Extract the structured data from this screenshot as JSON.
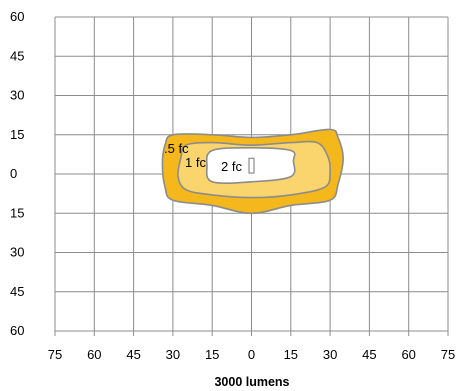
{
  "chart_data": {
    "type": "contour",
    "xlabel": "3000 lumens",
    "ylabel": "",
    "x_ticks": [
      "75",
      "60",
      "45",
      "30",
      "15",
      "0",
      "15",
      "30",
      "45",
      "60",
      "75"
    ],
    "y_ticks": [
      "60",
      "45",
      "30",
      "15",
      "0",
      "15",
      "30",
      "45",
      "60"
    ],
    "xlim": [
      -75,
      75
    ],
    "ylim": [
      -60,
      60
    ],
    "grid": true,
    "contours": [
      {
        "label": ".5 fc",
        "color": "#f5b81c",
        "points": [
          [
            -30,
            15
          ],
          [
            -15,
            15
          ],
          [
            0,
            14
          ],
          [
            15,
            15
          ],
          [
            30,
            17
          ],
          [
            33,
            14
          ],
          [
            35,
            6
          ],
          [
            33,
            -4
          ],
          [
            30,
            -10
          ],
          [
            15,
            -12
          ],
          [
            0,
            -15
          ],
          [
            -15,
            -12
          ],
          [
            -30,
            -10
          ],
          [
            -33,
            -5
          ],
          [
            -34,
            4
          ],
          [
            -33,
            11
          ]
        ]
      },
      {
        "label": "1 fc",
        "color": "#fad56e",
        "points": [
          [
            -25,
            11
          ],
          [
            -15,
            12
          ],
          [
            0,
            11
          ],
          [
            15,
            12
          ],
          [
            25,
            12
          ],
          [
            29,
            7
          ],
          [
            30,
            1
          ],
          [
            28,
            -5
          ],
          [
            15,
            -8
          ],
          [
            0,
            -9
          ],
          [
            -15,
            -8
          ],
          [
            -25,
            -6
          ],
          [
            -28,
            -1
          ],
          [
            -27,
            6
          ]
        ]
      },
      {
        "label": "2 fc",
        "color": "#ffffff",
        "points": [
          [
            -15,
            9
          ],
          [
            0,
            10
          ],
          [
            15,
            9
          ],
          [
            16,
            5
          ],
          [
            15,
            -1
          ],
          [
            0,
            -3
          ],
          [
            -15,
            -3
          ],
          [
            -17,
            3
          ]
        ]
      }
    ]
  }
}
